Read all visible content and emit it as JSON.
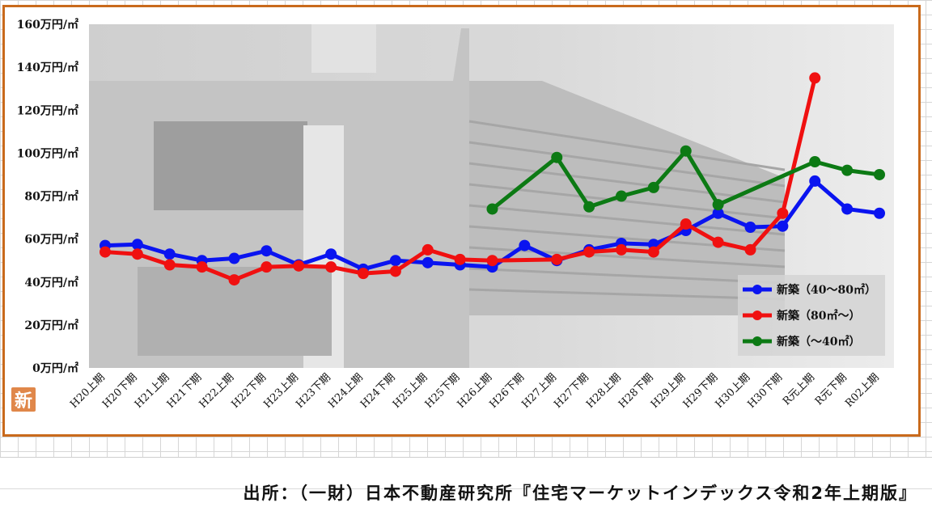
{
  "source_text": "出所：（一財）日本不動産研究所『住宅マーケットインデックス令和2年上期版』",
  "badge_text": "新",
  "colors": {
    "frame": "#c96a1c",
    "blue": "#0a14f0",
    "red": "#f01010",
    "green": "#0c7a14"
  },
  "chart_data": {
    "type": "line",
    "ylim": [
      0,
      160
    ],
    "yticks": [
      0,
      20,
      40,
      60,
      80,
      100,
      120,
      140,
      160
    ],
    "ytick_labels": [
      "0万円/㎡",
      "20万円/㎡",
      "40万円/㎡",
      "60万円/㎡",
      "80万円/㎡",
      "100万円/㎡",
      "120万円/㎡",
      "140万円/㎡",
      "160万円/㎡"
    ],
    "categories": [
      "H20上期",
      "H20下期",
      "H21上期",
      "H21下期",
      "H22上期",
      "H22下期",
      "H23上期",
      "H23下期",
      "H24上期",
      "H24下期",
      "H25上期",
      "H25下期",
      "H26上期",
      "H26下期",
      "H27上期",
      "H27下期",
      "H28上期",
      "H28下期",
      "H29上期",
      "H29下期",
      "H30上期",
      "H30下期",
      "R元上期",
      "R元下期",
      "R02上期"
    ],
    "legend_position": "bottom-right",
    "series": [
      {
        "name": "新築（40～80㎡）",
        "color": "#0a14f0",
        "values": [
          57,
          57.5,
          53,
          50,
          51,
          54.5,
          48,
          53,
          46,
          50,
          49,
          48,
          47,
          57,
          50,
          55,
          58,
          57.5,
          64,
          72,
          65.5,
          66,
          87,
          74,
          72
        ]
      },
      {
        "name": "新築（80㎡～）",
        "color": "#f01010",
        "values": [
          54,
          53,
          48,
          47,
          41,
          47,
          47.5,
          47,
          44,
          45,
          55,
          50.5,
          50,
          null,
          50.5,
          54,
          55,
          54,
          67,
          58.5,
          55,
          72,
          135,
          null,
          null
        ]
      },
      {
        "name": "新築（～40㎡）",
        "color": "#0c7a14",
        "values": [
          null,
          null,
          null,
          null,
          null,
          null,
          null,
          null,
          null,
          null,
          null,
          null,
          74,
          null,
          98,
          75,
          80,
          84,
          101,
          76,
          null,
          null,
          96,
          92,
          90
        ]
      }
    ]
  }
}
